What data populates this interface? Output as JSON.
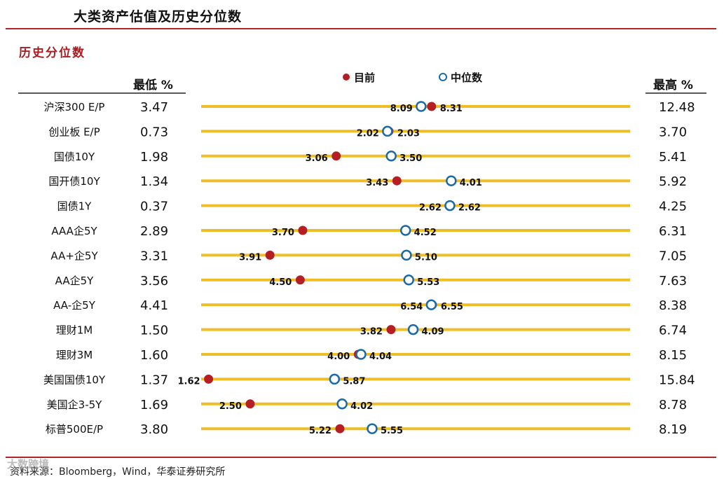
{
  "page_title": "大类资产估值及历史分位数",
  "section_title": "历史分位数",
  "source": "资料来源：Bloomberg，Wind，华泰证券研究所",
  "watermark": "大数跨境",
  "colors": {
    "title_rule": "#b32428",
    "line": "#efbd24",
    "current_dot": "#b51f23",
    "median_ring": "#1b6aa6",
    "section_title": "#a71d22"
  },
  "chart_data": {
    "type": "dot-range",
    "column_headers": {
      "low": "最低 %",
      "high": "最高 %"
    },
    "legend": [
      {
        "key": "current",
        "label": "目前",
        "marker": "filled-circle"
      },
      {
        "key": "median",
        "label": "中位数",
        "marker": "ring"
      }
    ],
    "rows": [
      {
        "label": "沪深300 E/P",
        "low": "3.47",
        "high": "12.48",
        "current": "8.31",
        "median": "8.09"
      },
      {
        "label": "创业板 E/P",
        "low": "0.73",
        "high": "3.70",
        "current": "2.03",
        "median": "2.02"
      },
      {
        "label": "国债10Y",
        "low": "1.98",
        "high": "5.41",
        "current": "3.06",
        "median": "3.50"
      },
      {
        "label": "国开债10Y",
        "low": "1.34",
        "high": "5.92",
        "current": "3.43",
        "median": "4.01"
      },
      {
        "label": "国债1Y",
        "low": "0.37",
        "high": "4.25",
        "current": "2.62",
        "median": "2.62"
      },
      {
        "label": "AAA企5Y",
        "low": "2.89",
        "high": "6.31",
        "current": "3.70",
        "median": "4.52"
      },
      {
        "label": "AA+企5Y",
        "low": "3.31",
        "high": "7.05",
        "current": "3.91",
        "median": "5.10"
      },
      {
        "label": "AA企5Y",
        "low": "3.56",
        "high": "7.63",
        "current": "4.50",
        "median": "5.53"
      },
      {
        "label": "AA-企5Y",
        "low": "4.41",
        "high": "8.38",
        "current": "6.55",
        "median": "6.54"
      },
      {
        "label": "理财1M",
        "low": "1.50",
        "high": "6.74",
        "current": "3.82",
        "median": "4.09"
      },
      {
        "label": "理财3M",
        "low": "1.60",
        "high": "8.15",
        "current": "4.00",
        "median": "4.04"
      },
      {
        "label": "美国国债10Y",
        "low": "1.37",
        "high": "15.84",
        "current": "1.62",
        "median": "5.87"
      },
      {
        "label": "美国企3-5Y",
        "low": "1.69",
        "high": "8.78",
        "current": "2.50",
        "median": "4.02"
      },
      {
        "label": "标普500E/P",
        "low": "3.80",
        "high": "8.19",
        "current": "5.22",
        "median": "5.55"
      }
    ]
  }
}
